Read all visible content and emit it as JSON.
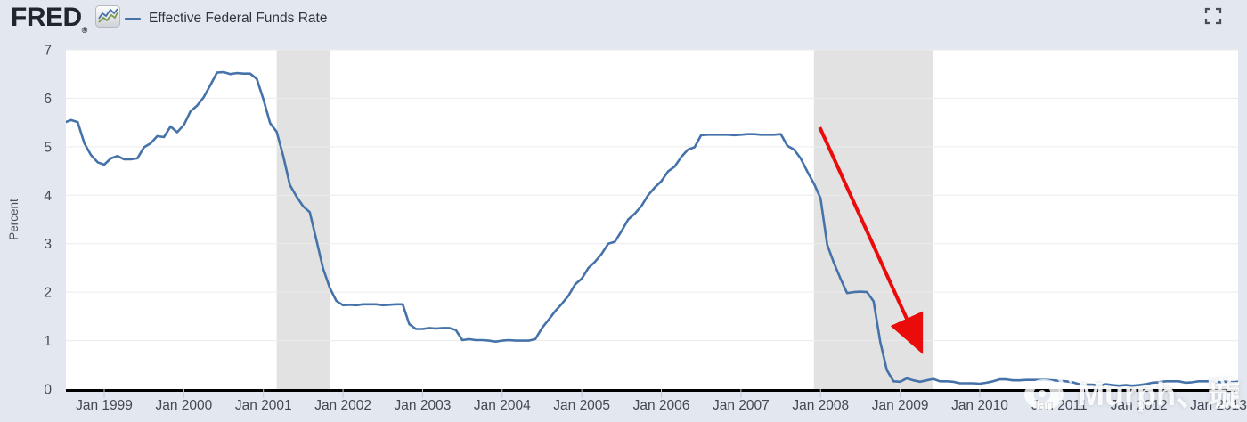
{
  "header": {
    "logo_text": "FRED",
    "registered_mark": "®",
    "logo_icon": "sparkline-chart-icon",
    "legend": {
      "series_label": "Effective Federal Funds Rate",
      "series_color": "#4573a9"
    },
    "fullscreen_icon": "fullscreen-expand-icon"
  },
  "watermark": {
    "icon": "weibo-icon",
    "text": "Murph、璇"
  },
  "colors": {
    "page_bg": "#e3e8f0",
    "plot_bg": "#ffffff",
    "recession_band": "#e2e2e2",
    "gridline": "#ececec",
    "series": "#4573a9",
    "axis": "#000000",
    "tick": "#c3cbdb",
    "label_text": "#444a52",
    "arrow": "#ea0b0b",
    "watermark_text": "#ffffff"
  },
  "chart_data": {
    "type": "line",
    "title": "Effective Federal Funds Rate",
    "xlabel": "",
    "ylabel": "Percent",
    "ylim": [
      0,
      7
    ],
    "yticks": [
      0,
      1,
      2,
      3,
      4,
      5,
      6,
      7
    ],
    "xtick_labels": [
      "Jan 1999",
      "Jan 2000",
      "Jan 2001",
      "Jan 2002",
      "Jan 2003",
      "Jan 2004",
      "Jan 2005",
      "Jan 2006",
      "Jan 2007",
      "Jan 2008",
      "Jan 2009",
      "Jan 2010",
      "Jan 2011",
      "Jan 2012",
      "Jan 2013"
    ],
    "grid": true,
    "legend_position": "top-left",
    "frequency": "monthly",
    "start": {
      "year": 1998,
      "month": 7
    },
    "values": [
      5.5,
      5.55,
      5.51,
      5.07,
      4.83,
      4.68,
      4.63,
      4.76,
      4.81,
      4.74,
      4.74,
      4.76,
      4.99,
      5.07,
      5.22,
      5.2,
      5.42,
      5.3,
      5.45,
      5.73,
      5.85,
      6.02,
      6.27,
      6.53,
      6.54,
      6.5,
      6.52,
      6.51,
      6.51,
      6.4,
      5.98,
      5.49,
      5.31,
      4.8,
      4.21,
      3.97,
      3.77,
      3.65,
      3.07,
      2.49,
      2.09,
      1.82,
      1.73,
      1.74,
      1.73,
      1.75,
      1.75,
      1.75,
      1.73,
      1.74,
      1.75,
      1.75,
      1.34,
      1.24,
      1.24,
      1.26,
      1.25,
      1.26,
      1.26,
      1.22,
      1.01,
      1.03,
      1.01,
      1.01,
      1.0,
      0.98,
      1.0,
      1.01,
      1.0,
      1.0,
      1.0,
      1.03,
      1.26,
      1.43,
      1.61,
      1.76,
      1.93,
      2.16,
      2.28,
      2.5,
      2.63,
      2.79,
      3.0,
      3.04,
      3.26,
      3.5,
      3.62,
      3.78,
      4.0,
      4.16,
      4.29,
      4.49,
      4.59,
      4.79,
      4.94,
      4.99,
      5.24,
      5.25,
      5.25,
      5.25,
      5.25,
      5.24,
      5.25,
      5.26,
      5.26,
      5.25,
      5.25,
      5.25,
      5.26,
      5.02,
      4.94,
      4.76,
      4.49,
      4.24,
      3.94,
      2.98,
      2.61,
      2.28,
      1.98,
      2.0,
      2.01,
      2.0,
      1.81,
      0.97,
      0.39,
      0.16,
      0.15,
      0.22,
      0.18,
      0.15,
      0.18,
      0.21,
      0.16,
      0.16,
      0.15,
      0.12,
      0.12,
      0.12,
      0.11,
      0.13,
      0.16,
      0.2,
      0.2,
      0.18,
      0.18,
      0.19,
      0.19,
      0.19,
      0.19,
      0.18,
      0.17,
      0.16,
      0.14,
      0.1,
      0.09,
      0.09,
      0.07,
      0.1,
      0.08,
      0.07,
      0.08,
      0.07,
      0.08,
      0.1,
      0.13,
      0.14,
      0.16,
      0.16,
      0.16,
      0.13,
      0.14,
      0.16,
      0.16,
      0.16,
      0.14,
      0.15,
      0.14,
      0.15
    ],
    "recession_bands": [
      {
        "from": 2001.1667,
        "to": 2001.8333
      },
      {
        "from": 2007.9167,
        "to": 2009.4167
      }
    ],
    "annotation_arrow": {
      "from": {
        "t": 2007.99,
        "v": 5.4
      },
      "to": {
        "t": 2009.23,
        "v": 0.92
      }
    }
  }
}
